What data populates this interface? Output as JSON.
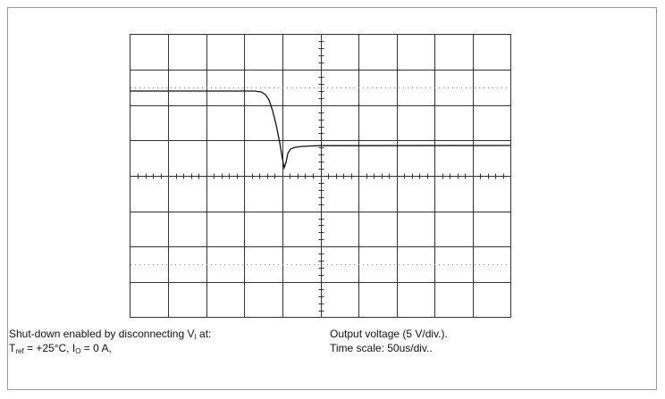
{
  "caption_left": {
    "line1": [
      "Shut-down enabled by disconnecting V",
      "I",
      " at:"
    ],
    "line2": [
      "T",
      "ref",
      " = +25°C, I",
      "O",
      " = 0 A,"
    ]
  },
  "caption_right": {
    "line1": "Output voltage (5 V/div.).",
    "line2": "Time scale: 50us/div.."
  }
}
